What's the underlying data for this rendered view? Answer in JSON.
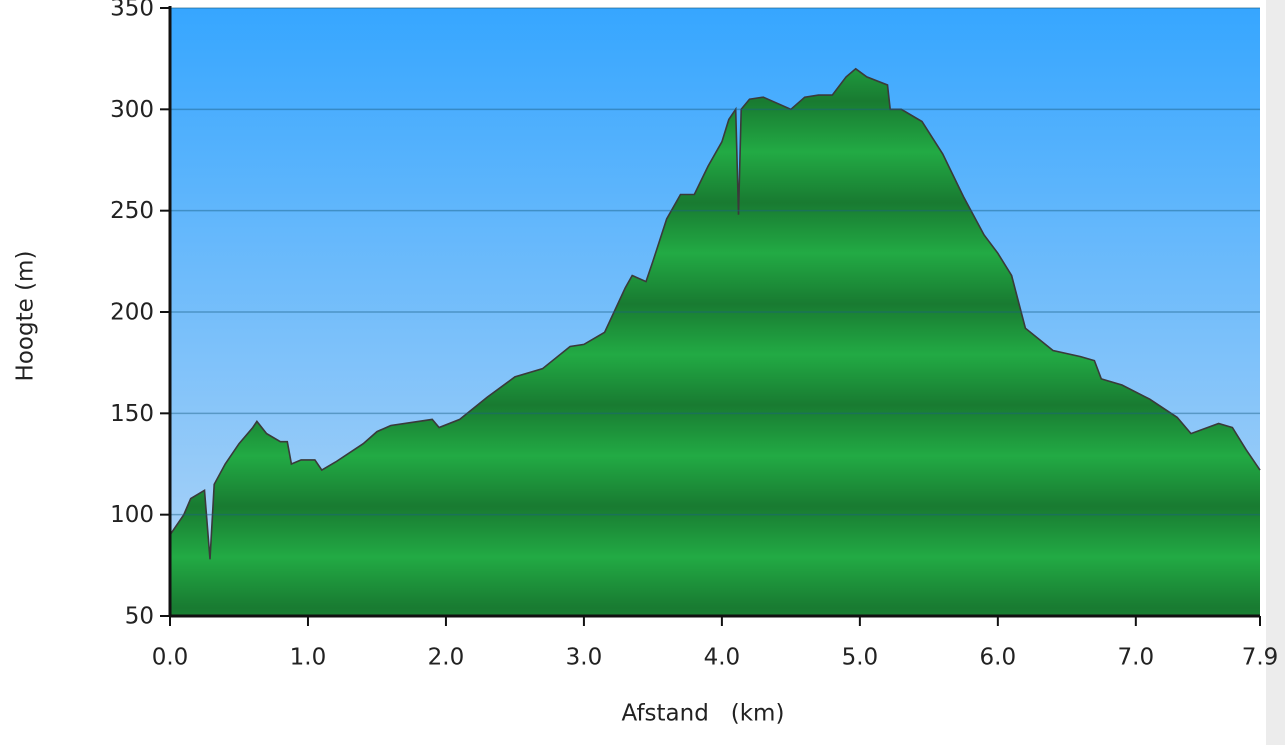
{
  "chart_data": {
    "type": "area",
    "xlabel": "Afstand   (km)",
    "ylabel": "Hoogte (m)",
    "color": "#22aa44",
    "grid": true,
    "xlim": [
      0,
      7.9
    ],
    "ylim": [
      50,
      350
    ],
    "xticks": [
      {
        "value": 0,
        "label": "0.0"
      },
      {
        "value": 1,
        "label": "1.0"
      },
      {
        "value": 2,
        "label": "2.0"
      },
      {
        "value": 3,
        "label": "3.0"
      },
      {
        "value": 4,
        "label": "4.0"
      },
      {
        "value": 5,
        "label": "5.0"
      },
      {
        "value": 6,
        "label": "6.0"
      },
      {
        "value": 7,
        "label": "7.0"
      },
      7.9
    ],
    "yticks": [
      50,
      100,
      150,
      200,
      250,
      300,
      350
    ],
    "x": [
      0,
      0.1,
      0.15,
      0.25,
      0.29,
      0.32,
      0.4,
      0.5,
      0.6,
      0.63,
      0.7,
      0.8,
      0.85,
      0.88,
      0.95,
      1.05,
      1.1,
      1.2,
      1.4,
      1.5,
      1.6,
      1.8,
      1.9,
      1.95,
      2.1,
      2.3,
      2.5,
      2.7,
      2.9,
      3.0,
      3.15,
      3.3,
      3.35,
      3.45,
      3.5,
      3.6,
      3.7,
      3.8,
      3.9,
      4.0,
      4.05,
      4.1,
      4.12,
      4.14,
      4.2,
      4.3,
      4.5,
      4.6,
      4.7,
      4.8,
      4.9,
      4.97,
      5.05,
      5.2,
      5.22,
      5.3,
      5.45,
      5.6,
      5.75,
      5.9,
      6.0,
      6.1,
      6.2,
      6.4,
      6.6,
      6.7,
      6.75,
      6.9,
      7.1,
      7.3,
      7.4,
      7.6,
      7.7,
      7.8,
      7.9
    ],
    "values": [
      90,
      100,
      108,
      112,
      78,
      115,
      125,
      135,
      143,
      146,
      140,
      136,
      136,
      125,
      127,
      127,
      122,
      126,
      135,
      141,
      144,
      146,
      147,
      143,
      147,
      158,
      168,
      172,
      183,
      184,
      190,
      212,
      218,
      215,
      225,
      246,
      258,
      258,
      272,
      284,
      295,
      300,
      248,
      300,
      305,
      306,
      300,
      306,
      307,
      307,
      316,
      320,
      316,
      312,
      300,
      300,
      294,
      278,
      257,
      238,
      229,
      218,
      192,
      181,
      178,
      176,
      167,
      164,
      157,
      148,
      140,
      145,
      143,
      132,
      122
    ]
  }
}
